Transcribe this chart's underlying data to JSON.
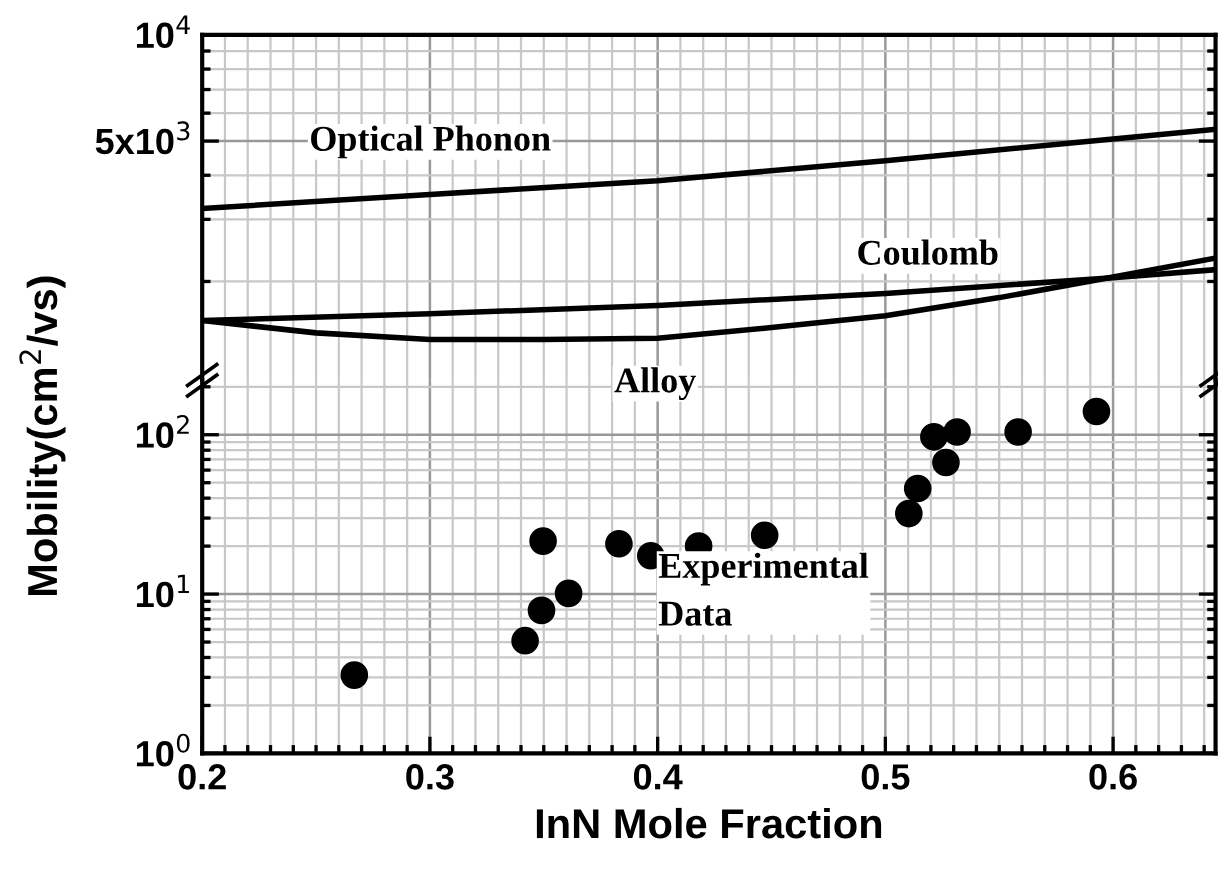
{
  "chart_data": [
    {
      "type": "line",
      "xlim": [
        0.2,
        0.645
      ],
      "ylim": [
        1050,
        10000
      ],
      "log": "y",
      "grid": true,
      "tick_labels": "y",
      "yticks": [
        {
          "value": 5000,
          "label": "5x10$^{3}$"
        },
        {
          "value": 10000,
          "label": "10$^{4}$"
        }
      ],
      "series": [
        {
          "name": "Optical Phonon",
          "color": "#000000",
          "x": [
            0.2,
            0.3,
            0.4,
            0.5,
            0.6,
            0.645
          ],
          "values": [
            3220,
            3530,
            3860,
            4400,
            5070,
            5400
          ]
        },
        {
          "name": "Coulomb",
          "color": "#000000",
          "x": [
            0.2,
            0.3,
            0.4,
            0.5,
            0.6,
            0.645
          ],
          "values": [
            1550,
            1620,
            1710,
            1850,
            2050,
            2160
          ]
        },
        {
          "name": "Alloy",
          "color": "#000000",
          "x": [
            0.2,
            0.25,
            0.3,
            0.35,
            0.4,
            0.45,
            0.5,
            0.55,
            0.6,
            0.645
          ],
          "values": [
            1550,
            1430,
            1370,
            1370,
            1380,
            1480,
            1600,
            1800,
            2060,
            2330
          ]
        }
      ]
    },
    {
      "type": "scatter",
      "xlim": [
        0.2,
        0.645
      ],
      "ylim": [
        1,
        220
      ],
      "log": "y",
      "grid": true,
      "marker": "circle",
      "xlabel": "InN Mole Fraction",
      "ylabel": "Mobility(cm$^{2}$/vs)",
      "xticks": [
        0.2,
        0.3,
        0.4,
        0.5,
        0.6
      ],
      "yticks": [
        {
          "value": 1,
          "label": "10$^{0}$"
        },
        {
          "value": 10,
          "label": "10$^{1}$"
        },
        {
          "value": 100,
          "label": "10$^{2}$"
        }
      ],
      "series": [
        {
          "name": "Experimental\nData",
          "color": "#000000",
          "x": [
            0.2668,
            0.3418,
            0.349,
            0.3497,
            0.3609,
            0.383,
            0.397,
            0.418,
            0.447,
            0.5103,
            0.5142,
            0.5213,
            0.5266,
            0.5315,
            0.5583,
            0.5927
          ],
          "values": [
            3.1,
            5.1,
            7.9,
            21.5,
            10.1,
            20.7,
            17.4,
            20,
            23.4,
            32,
            46,
            97,
            67,
            104,
            104,
            140
          ]
        }
      ]
    }
  ]
}
